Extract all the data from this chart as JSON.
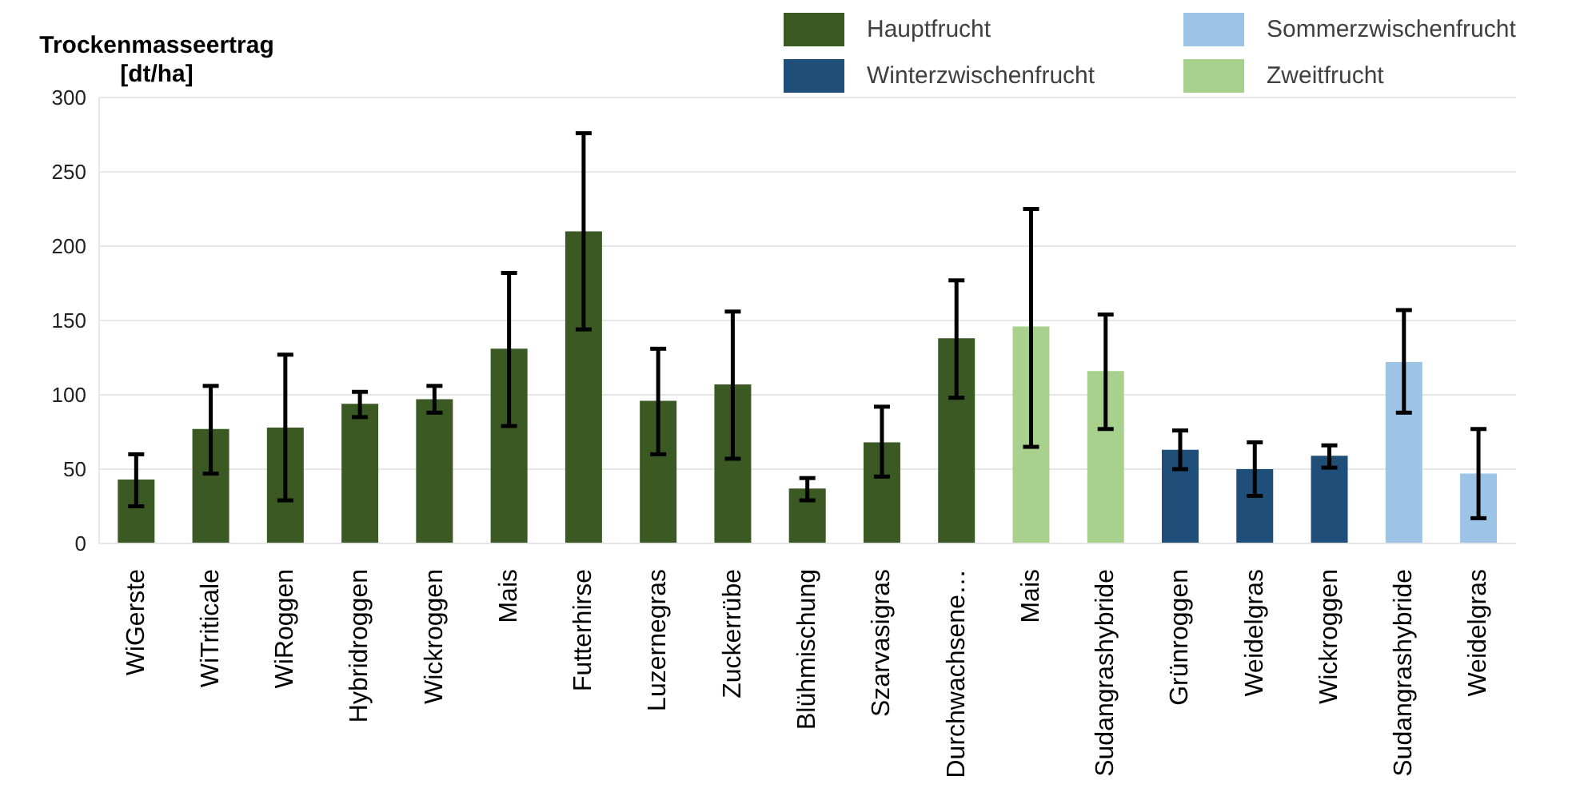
{
  "chart_data": {
    "type": "bar",
    "ylabel": "Trockenmasseertrag [dt/ha]",
    "categories": [
      "WiGerste",
      "WiTriticale",
      "WiRoggen",
      "Hybridroggen",
      "Wickroggen",
      "Mais",
      "Futterhirse",
      "Luzernegras",
      "Zuckerrübe",
      "Blühmischung",
      "Szarvasigras",
      "Durchwachsene…",
      "Mais",
      "Sudangrashybride",
      "Grünroggen",
      "Weidelgras",
      "Wickroggen",
      "Sudangrashybride",
      "Weidelgras"
    ],
    "stacked": true,
    "series": [
      {
        "name": "Hauptfrucht",
        "color": "#3b5a23",
        "values": [
          43,
          77,
          78,
          94,
          97,
          131,
          210,
          96,
          107,
          37,
          68,
          138,
          null,
          null,
          null,
          null,
          null,
          null,
          null
        ],
        "errors": [
          [
            25,
            60
          ],
          [
            47,
            106
          ],
          [
            29,
            127
          ],
          [
            85,
            102
          ],
          [
            88,
            106
          ],
          [
            79,
            182
          ],
          [
            144,
            276
          ],
          [
            60,
            131
          ],
          [
            57,
            156
          ],
          [
            29,
            44
          ],
          [
            45,
            92
          ],
          [
            98,
            177
          ],
          null,
          null,
          null,
          null,
          null,
          null,
          null
        ]
      },
      {
        "name": "Zweitfrucht",
        "color": "#a9d18e",
        "values": [
          null,
          null,
          null,
          null,
          null,
          null,
          null,
          null,
          null,
          null,
          null,
          null,
          146,
          116,
          null,
          null,
          null,
          null,
          null
        ],
        "errors": [
          null,
          null,
          null,
          null,
          null,
          null,
          null,
          null,
          null,
          null,
          null,
          null,
          [
            65,
            225
          ],
          [
            77,
            154
          ],
          null,
          null,
          null,
          null,
          null
        ]
      },
      {
        "name": "Winterzwischenfrucht",
        "color": "#1f4e79",
        "values": [
          null,
          null,
          null,
          null,
          null,
          null,
          null,
          null,
          null,
          null,
          null,
          null,
          null,
          null,
          63,
          50,
          59,
          null,
          null
        ],
        "errors": [
          null,
          null,
          null,
          null,
          null,
          null,
          null,
          null,
          null,
          null,
          null,
          null,
          null,
          null,
          [
            50,
            76
          ],
          [
            32,
            68
          ],
          [
            51,
            66
          ],
          null,
          null
        ]
      },
      {
        "name": "Sommerzwischenfrucht",
        "color": "#9dc3e6",
        "values": [
          null,
          null,
          null,
          null,
          null,
          null,
          null,
          null,
          null,
          null,
          null,
          null,
          null,
          null,
          null,
          null,
          null,
          122,
          47
        ],
        "errors": [
          null,
          null,
          null,
          null,
          null,
          null,
          null,
          null,
          null,
          null,
          null,
          null,
          null,
          null,
          null,
          null,
          null,
          [
            88,
            157
          ],
          [
            17,
            77
          ]
        ]
      }
    ],
    "ylim": [
      0,
      300
    ],
    "yticks": [
      0,
      50,
      100,
      150,
      200,
      250,
      300
    ],
    "grid": "y",
    "legend": "top right"
  }
}
